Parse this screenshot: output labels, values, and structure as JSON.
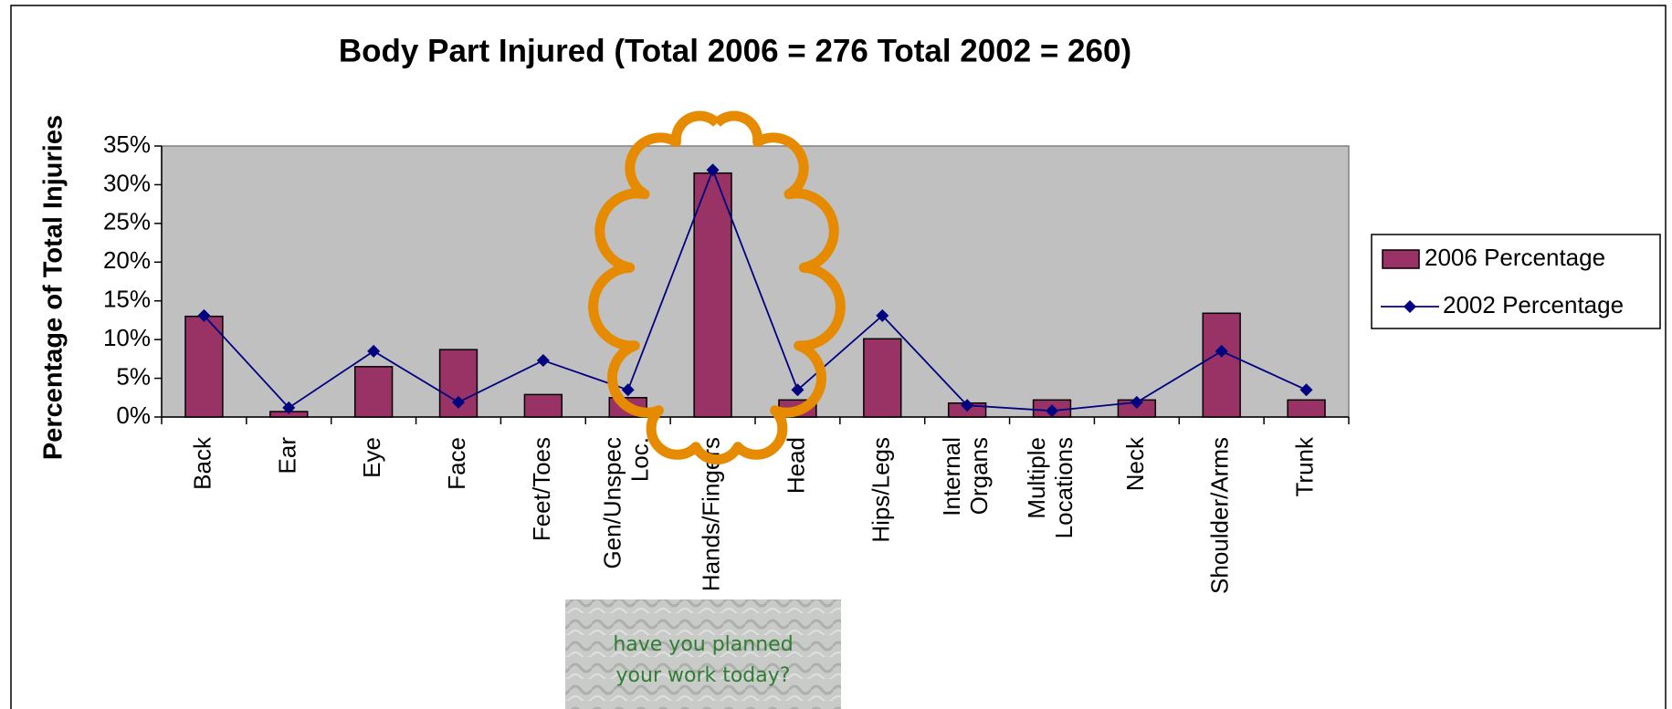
{
  "chart_data": {
    "type": "bar-line",
    "title": "Body Part Injured (Total 2006 = 276 Total 2002 = 260)",
    "y_label": "Percentage of Total Injuries",
    "categories": [
      "Back",
      "Ear",
      "Eye",
      "Face",
      "Feet/Toes",
      "Gen/Unspec Loc.",
      "Hands/Fingers",
      "Head",
      "Hips/Legs",
      "Internal Organs",
      "Multiple Locations",
      "Neck",
      "Shoulder/Arms",
      "Trunk"
    ],
    "series": [
      {
        "name": "2006 Percentage",
        "type": "bar",
        "color": "#993366",
        "values": [
          13.0,
          0.7,
          6.5,
          8.7,
          2.9,
          2.5,
          31.5,
          2.2,
          10.1,
          1.8,
          2.2,
          2.2,
          13.4,
          2.2
        ]
      },
      {
        "name": "2002 Percentage",
        "type": "line",
        "color": "#000080",
        "values": [
          13.1,
          1.2,
          8.5,
          1.9,
          7.3,
          3.5,
          31.9,
          3.5,
          13.1,
          1.5,
          0.8,
          1.9,
          8.5,
          3.5
        ]
      }
    ],
    "ylim": [
      0,
      35
    ],
    "yticks": [
      {
        "value": 0,
        "label": "0%"
      },
      {
        "value": 5,
        "label": "5%"
      },
      {
        "value": 10,
        "label": "10%"
      },
      {
        "value": 15,
        "label": "15%"
      },
      {
        "value": 20,
        "label": "20%"
      },
      {
        "value": 25,
        "label": "25%"
      },
      {
        "value": 30,
        "label": "30%"
      },
      {
        "value": 35,
        "label": "35%"
      }
    ],
    "grid": false,
    "legend": "right",
    "annotation": [
      "have you planned",
      "your work today?"
    ]
  }
}
